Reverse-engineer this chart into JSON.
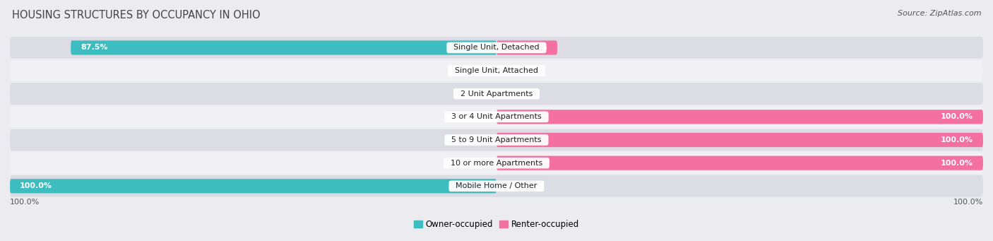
{
  "title": "HOUSING STRUCTURES BY OCCUPANCY IN OHIO",
  "source": "Source: ZipAtlas.com",
  "categories": [
    "Single Unit, Detached",
    "Single Unit, Attached",
    "2 Unit Apartments",
    "3 or 4 Unit Apartments",
    "5 to 9 Unit Apartments",
    "10 or more Apartments",
    "Mobile Home / Other"
  ],
  "owner_pct": [
    87.5,
    0.0,
    0.0,
    0.0,
    0.0,
    0.0,
    100.0
  ],
  "renter_pct": [
    12.5,
    0.0,
    0.0,
    100.0,
    100.0,
    100.0,
    0.0
  ],
  "owner_color": "#3dbdc0",
  "renter_color": "#f470a0",
  "bg_color": "#ebebf0",
  "row_bg_dark": "#dcdce4",
  "row_bg_light": "#f0f0f5",
  "title_color": "#444444",
  "label_dark": "#555555",
  "label_light": "#aaaaaa",
  "bar_height": 0.62,
  "xlim": 100,
  "figsize": [
    14.06,
    3.41
  ],
  "dpi": 100
}
